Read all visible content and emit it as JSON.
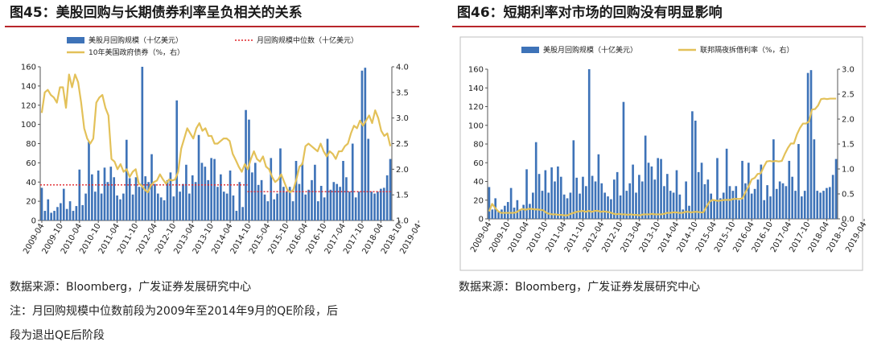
{
  "figures": [
    {
      "title": "图45：美股回购与长期债券利率呈负相关的关系",
      "source": "数据来源：Bloomberg，广发证券发展研究中心",
      "note_line1": "注：月回购规模中位数前段为2009年至2014年9月的QE阶段，后",
      "note_line2": "段为退出QE后阶段"
    },
    {
      "title": "图46：短期利率对市场的回购没有明显影响",
      "source": "数据来源：Bloomberg，广发证券发展研究中心"
    }
  ],
  "colors": {
    "bar": "#3e73b8",
    "line": "#e3c159",
    "median": "#e0262b",
    "title_rule": "#b8262b"
  },
  "chart_data": [
    {
      "type": "bar",
      "x_tick_labels": [
        "2009-04",
        "2009-10",
        "2010-04",
        "2010-10",
        "2011-04",
        "2011-10",
        "2012-04",
        "2012-10",
        "2013-04",
        "2013-10",
        "2014-04",
        "2014-10",
        "2015-04",
        "2015-10",
        "2016-04",
        "2016-10",
        "2017-04",
        "2017-10",
        "2018-04",
        "2018-10",
        "2019-04"
      ],
      "ylim": [
        0,
        160
      ],
      "y_ticks": [
        "0",
        "20",
        "40",
        "60",
        "80",
        "100",
        "120",
        "140",
        "160"
      ],
      "y2lim": [
        1.0,
        4.0
      ],
      "y2_ticks": [
        "1.0",
        "1.5",
        "2.0",
        "2.5",
        "3.0",
        "3.5",
        "4.0"
      ],
      "legend": [
        "美股月回购规模（十亿美元）",
        "月回购规模中位数（十亿美元）",
        "10年美国政府债券（%，右）"
      ],
      "legend_placement": "top",
      "series": [
        {
          "name": "美股月回购规模（十亿美元）",
          "values": [
            34,
            10,
            22,
            8,
            10,
            14,
            18,
            33,
            12,
            20,
            10,
            15,
            53,
            16,
            28,
            82,
            48,
            30,
            52,
            28,
            55,
            40,
            56,
            45,
            26,
            22,
            28,
            84,
            44,
            27,
            45,
            35,
            160,
            46,
            40,
            69,
            38,
            28,
            24,
            21,
            42,
            50,
            25,
            125,
            30,
            38,
            58,
            28,
            47,
            40,
            89,
            60,
            56,
            42,
            65,
            64,
            35,
            48,
            30,
            28,
            52,
            26,
            10,
            40,
            14,
            115,
            105,
            50,
            60,
            37,
            42,
            27,
            20,
            65,
            22,
            28,
            75,
            35,
            30,
            35,
            20,
            62,
            38,
            60,
            27,
            32,
            42,
            58,
            20,
            36,
            24,
            85,
            32,
            40,
            38,
            35,
            62,
            45,
            30,
            80,
            24,
            30,
            156,
            159,
            85,
            30,
            28,
            30,
            33,
            34,
            47,
            64
          ]
        },
        {
          "name": "月回购规模中位数（十亿美元）",
          "segments": [
            {
              "from": "2009-04",
              "to": "2014-09",
              "value": 37
            },
            {
              "from": "2014-10",
              "to": "2019-04",
              "value": 30
            }
          ]
        },
        {
          "name": "10年美国政府债券（%，右）",
          "axis": "right",
          "values": [
            3.1,
            3.5,
            3.55,
            3.45,
            3.4,
            3.3,
            3.6,
            3.6,
            3.2,
            3.85,
            3.6,
            3.85,
            3.7,
            3.3,
            2.8,
            2.6,
            2.5,
            2.6,
            3.3,
            3.4,
            3.45,
            3.2,
            3.05,
            2.2,
            2.15,
            2.0,
            2.1,
            1.95,
            2.0,
            1.85,
            1.95,
            2.0,
            1.72,
            1.68,
            1.6,
            1.55,
            1.68,
            1.75,
            1.78,
            1.9,
            1.8,
            1.72,
            1.8,
            1.78,
            1.8,
            1.95,
            2.4,
            2.6,
            2.8,
            2.7,
            2.6,
            2.8,
            2.9,
            2.75,
            2.8,
            2.65,
            2.65,
            2.5,
            2.5,
            2.55,
            2.6,
            2.6,
            2.55,
            2.3,
            2.18,
            2.05,
            1.95,
            2.1,
            2.0,
            2.2,
            2.35,
            2.2,
            2.15,
            2.25,
            2.05,
            2.0,
            1.85,
            1.75,
            1.8,
            1.9,
            1.75,
            1.6,
            1.55,
            1.6,
            1.8,
            2.05,
            2.1,
            2.45,
            2.5,
            2.45,
            2.4,
            2.35,
            2.5,
            2.35,
            2.25,
            2.35,
            2.3,
            2.2,
            2.35,
            2.35,
            2.45,
            2.5,
            2.7,
            2.85,
            2.8,
            2.95,
            2.85,
            2.95,
            3.05,
            2.9,
            3.15,
            3.0,
            2.75,
            2.65,
            2.7,
            2.45
          ]
        }
      ]
    },
    {
      "type": "bar",
      "x_tick_labels": [
        "2009-04",
        "2009-10",
        "2010-04",
        "2010-10",
        "2011-04",
        "2011-10",
        "2012-04",
        "2012-10",
        "2013-04",
        "2013-10",
        "2014-04",
        "2014-10",
        "2015-04",
        "2015-10",
        "2016-04",
        "2016-10",
        "2017-04",
        "2017-10",
        "2018-04",
        "2018-10",
        "2019-04"
      ],
      "ylim": [
        0,
        160
      ],
      "y_ticks": [
        "0",
        "20",
        "40",
        "60",
        "80",
        "100",
        "120",
        "140",
        "160"
      ],
      "y2lim": [
        0,
        3.0
      ],
      "y2_ticks": [
        "0.0",
        "0.5",
        "1.0",
        "1.5",
        "2.0",
        "2.5",
        "3.0"
      ],
      "legend": [
        "美股月回购规模（十亿美元）",
        "联邦隔夜拆借利率（%，右）"
      ],
      "legend_placement": "top",
      "series": [
        {
          "name": "美股月回购规模（十亿美元）",
          "values": [
            34,
            10,
            22,
            8,
            10,
            14,
            18,
            33,
            12,
            20,
            10,
            15,
            53,
            16,
            28,
            82,
            48,
            30,
            52,
            28,
            55,
            40,
            56,
            45,
            26,
            22,
            28,
            84,
            44,
            27,
            45,
            35,
            160,
            46,
            40,
            69,
            38,
            28,
            24,
            21,
            42,
            50,
            25,
            125,
            30,
            38,
            58,
            28,
            47,
            40,
            89,
            60,
            56,
            42,
            65,
            64,
            35,
            48,
            30,
            28,
            52,
            26,
            10,
            40,
            14,
            115,
            105,
            50,
            60,
            37,
            42,
            27,
            20,
            65,
            22,
            28,
            75,
            35,
            30,
            35,
            20,
            62,
            38,
            60,
            27,
            32,
            42,
            58,
            20,
            36,
            24,
            85,
            32,
            40,
            38,
            35,
            62,
            45,
            30,
            80,
            24,
            30,
            156,
            159,
            85,
            30,
            28,
            30,
            33,
            34,
            47,
            64
          ]
        },
        {
          "name": "联邦隔夜拆借利率（%，右）",
          "axis": "right",
          "values": [
            0.15,
            0.3,
            0.22,
            0.15,
            0.12,
            0.12,
            0.12,
            0.12,
            0.12,
            0.13,
            0.17,
            0.2,
            0.18,
            0.2,
            0.2,
            0.19,
            0.19,
            0.18,
            0.17,
            0.12,
            0.1,
            0.09,
            0.09,
            0.08,
            0.08,
            0.07,
            0.07,
            0.1,
            0.12,
            0.14,
            0.15,
            0.16,
            0.14,
            0.16,
            0.14,
            0.16,
            0.16,
            0.14,
            0.15,
            0.14,
            0.13,
            0.11,
            0.09,
            0.1,
            0.09,
            0.09,
            0.08,
            0.09,
            0.08,
            0.08,
            0.07,
            0.09,
            0.09,
            0.09,
            0.1,
            0.09,
            0.09,
            0.09,
            0.1,
            0.12,
            0.12,
            0.13,
            0.13,
            0.12,
            0.12,
            0.14,
            0.14,
            0.13,
            0.14,
            0.14,
            0.13,
            0.13,
            0.24,
            0.34,
            0.38,
            0.37,
            0.36,
            0.37,
            0.38,
            0.38,
            0.38,
            0.4,
            0.4,
            0.4,
            0.41,
            0.54,
            0.65,
            0.79,
            0.82,
            0.9,
            0.91,
            1.04,
            1.15,
            1.16,
            1.15,
            1.16,
            1.15,
            1.16,
            1.3,
            1.42,
            1.51,
            1.51,
            1.69,
            1.82,
            1.91,
            1.91,
            1.95,
            2.19,
            2.2,
            2.27,
            2.4,
            2.41,
            2.4,
            2.41,
            2.41,
            2.41
          ]
        }
      ]
    }
  ]
}
